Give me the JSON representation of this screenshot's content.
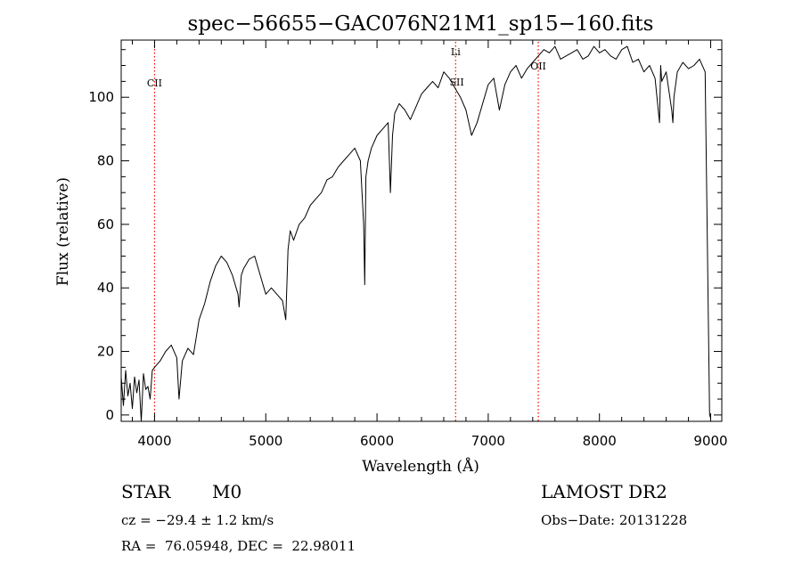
{
  "chart_data": {
    "type": "line",
    "title": "spec−56655−GAC076N21M1_sp15−160.fits",
    "xlabel": "Wavelength (Å)",
    "ylabel": "Flux (relative)",
    "xlim": [
      3700,
      9100
    ],
    "ylim": [
      -2,
      118
    ],
    "xticks": [
      4000,
      5000,
      6000,
      7000,
      8000,
      9000
    ],
    "yticks": [
      0,
      20,
      40,
      60,
      80,
      100
    ],
    "grid": false,
    "line_color": "#000000",
    "marker_color": "#ff0000",
    "series": [
      {
        "x": [
          3700,
          3720,
          3740,
          3760,
          3780,
          3800,
          3820,
          3840,
          3860,
          3880,
          3900,
          3920,
          3940,
          3960,
          3980,
          4000,
          4050,
          4100,
          4150,
          4200,
          4220,
          4250,
          4300,
          4350,
          4400,
          4450,
          4500,
          4550,
          4600,
          4650,
          4700,
          4750,
          4760,
          4780,
          4800,
          4850,
          4900,
          4950,
          5000,
          5050,
          5100,
          5150,
          5180,
          5200,
          5220,
          5250,
          5300,
          5350,
          5400,
          5450,
          5500,
          5550,
          5600,
          5650,
          5700,
          5750,
          5800,
          5850,
          5880,
          5890,
          5900,
          5920,
          5950,
          6000,
          6050,
          6100,
          6120,
          6140,
          6160,
          6200,
          6250,
          6300,
          6350,
          6400,
          6450,
          6500,
          6550,
          6600,
          6650,
          6700,
          6750,
          6800,
          6850,
          6900,
          6950,
          7000,
          7050,
          7100,
          7150,
          7200,
          7250,
          7300,
          7350,
          7400,
          7450,
          7500,
          7550,
          7600,
          7650,
          7700,
          7750,
          7800,
          7850,
          7900,
          7950,
          8000,
          8050,
          8100,
          8150,
          8200,
          8250,
          8300,
          8350,
          8400,
          8450,
          8500,
          8540,
          8550,
          8560,
          8600,
          8650,
          8660,
          8670,
          8700,
          8750,
          8800,
          8850,
          8900,
          8950,
          8990,
          9000
        ],
        "y": [
          12,
          3,
          14,
          6,
          10,
          2,
          12,
          7,
          11,
          -2,
          13,
          8,
          9,
          5,
          14,
          15,
          17,
          20,
          22,
          18,
          5,
          17,
          21,
          19,
          30,
          35,
          42,
          47,
          50,
          48,
          44,
          38,
          34,
          44,
          46,
          49,
          50,
          44,
          38,
          40,
          38,
          36,
          30,
          52,
          58,
          55,
          60,
          62,
          66,
          68,
          70,
          74,
          75,
          78,
          80,
          82,
          84,
          80,
          60,
          41,
          75,
          80,
          84,
          88,
          90,
          92,
          70,
          88,
          95,
          98,
          96,
          93,
          97,
          101,
          103,
          105,
          103,
          108,
          106,
          103,
          100,
          96,
          88,
          92,
          98,
          104,
          106,
          96,
          104,
          108,
          110,
          106,
          109,
          111,
          113,
          115,
          114,
          116,
          112,
          113,
          114,
          115,
          112,
          113,
          116,
          114,
          115,
          113,
          112,
          115,
          116,
          111,
          112,
          108,
          110,
          106,
          92,
          110,
          105,
          108,
          96,
          92,
          100,
          108,
          111,
          109,
          110,
          112,
          108,
          0,
          -1
        ]
      }
    ],
    "line_markers": [
      {
        "label": "CII",
        "x": 4000
      },
      {
        "label": "Li",
        "x": 6707
      },
      {
        "label": "SII",
        "x": 6717
      },
      {
        "label": "OII",
        "x": 7450
      }
    ]
  },
  "info": {
    "object_class": "STAR",
    "subclass": "M0",
    "survey": "LAMOST DR2",
    "redshift_text": "cz = −29.4 ± 1.2 km/s",
    "obs_date": "Obs−Date: 20131228",
    "coords": "RA =  76.05948, DEC =  22.98011"
  }
}
